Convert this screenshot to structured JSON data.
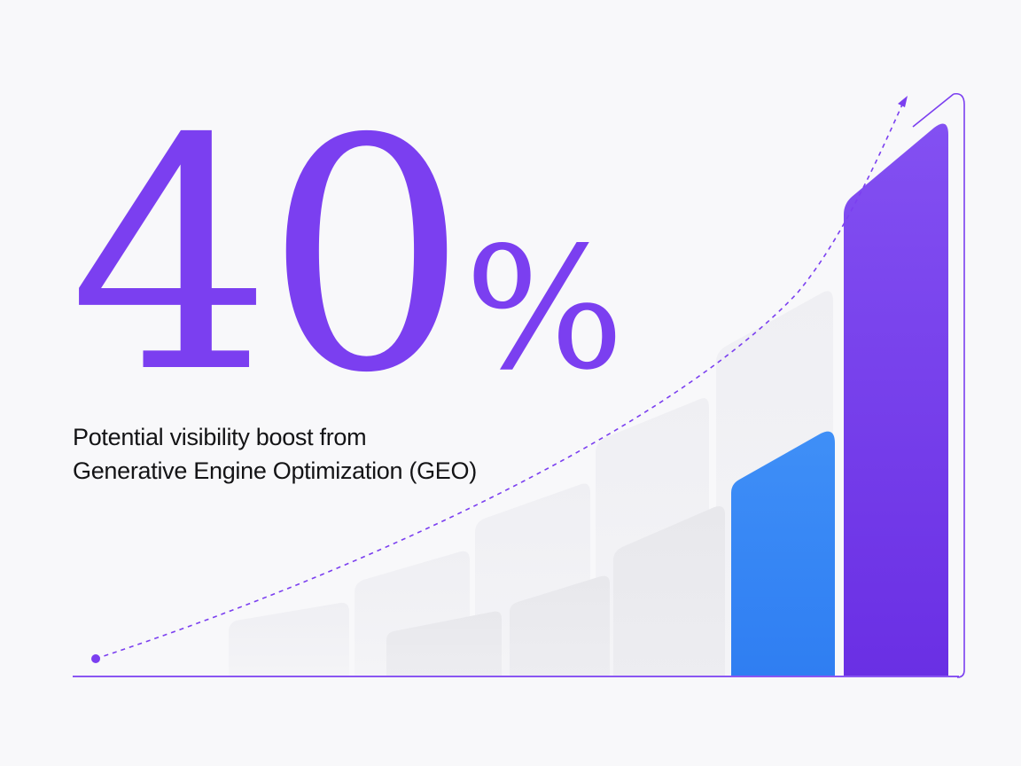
{
  "headline": {
    "number": "40",
    "percent_sign": "%"
  },
  "caption": {
    "line1": "Potential visibility boost from",
    "line2": "Generative Engine Optimization (GEO)"
  },
  "colors": {
    "accent_purple": "#7b3ff0",
    "accent_blue": "#3586f5",
    "ghost_bar": "#ececf0",
    "background": "#f8f8fa",
    "text": "#141416"
  },
  "chart_data": {
    "type": "bar",
    "values": [
      1,
      2,
      3,
      4,
      5,
      6,
      7,
      8,
      9,
      10
    ],
    "highlighted": [
      "blue-bar",
      "purple-bar"
    ],
    "trend": "dashed upward curve with arrow",
    "grid": false
  }
}
